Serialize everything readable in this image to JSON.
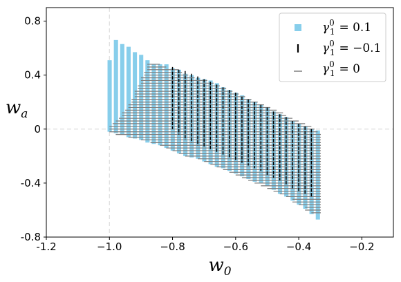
{
  "chart_data": {
    "type": "scatter",
    "title": "",
    "xlabel": "w",
    "xlabel_sub": "0",
    "ylabel": "w",
    "ylabel_sub": "a",
    "xlim": [
      -1.2,
      -0.1
    ],
    "ylim": [
      -0.8,
      0.9
    ],
    "x_ticks": [
      -1.2,
      -1.0,
      -0.8,
      -0.6,
      -0.4,
      -0.2
    ],
    "x_tick_labels": [
      "-1.2",
      "−1.0",
      "−0.8",
      "−0.6",
      "−0.4",
      "−0.2"
    ],
    "y_ticks": [
      -0.8,
      -0.4,
      0,
      0.4,
      0.8
    ],
    "y_tick_labels": [
      "-0.8",
      "-0.4",
      "0",
      "0.4",
      "0.8"
    ],
    "reference_lines": {
      "x": -1.0,
      "y": 0,
      "style": "dashed",
      "color": "#dddddd"
    },
    "legend_position": "top-right",
    "grid": false,
    "series": [
      {
        "name": "γ₁⁰ = 0.1",
        "name_math": {
          "base": "γ",
          "sup": "0",
          "sub": "1",
          "rhs": "= 0.1"
        },
        "marker": "square",
        "color": "#87ceeb",
        "column_width": 0.012,
        "columns": [
          {
            "x": -1.0,
            "ymin": -0.02,
            "ymax": 0.51
          },
          {
            "x": -0.98,
            "ymin": -0.03,
            "ymax": 0.66
          },
          {
            "x": -0.96,
            "ymin": -0.04,
            "ymax": 0.63
          },
          {
            "x": -0.94,
            "ymin": -0.06,
            "ymax": 0.61
          },
          {
            "x": -0.92,
            "ymin": -0.07,
            "ymax": 0.57
          },
          {
            "x": -0.9,
            "ymin": -0.08,
            "ymax": 0.55
          },
          {
            "x": -0.88,
            "ymin": -0.1,
            "ymax": 0.51
          },
          {
            "x": -0.86,
            "ymin": -0.11,
            "ymax": 0.48
          },
          {
            "x": -0.84,
            "ymin": -0.12,
            "ymax": 0.48
          },
          {
            "x": -0.82,
            "ymin": -0.14,
            "ymax": 0.48
          },
          {
            "x": -0.8,
            "ymin": -0.16,
            "ymax": 0.45
          },
          {
            "x": -0.78,
            "ymin": -0.18,
            "ymax": 0.44
          },
          {
            "x": -0.76,
            "ymin": -0.2,
            "ymax": 0.41
          },
          {
            "x": -0.74,
            "ymin": -0.21,
            "ymax": 0.4
          },
          {
            "x": -0.72,
            "ymin": -0.22,
            "ymax": 0.38
          },
          {
            "x": -0.7,
            "ymin": -0.24,
            "ymax": 0.37
          },
          {
            "x": -0.68,
            "ymin": -0.26,
            "ymax": 0.36
          },
          {
            "x": -0.66,
            "ymin": -0.28,
            "ymax": 0.34
          },
          {
            "x": -0.64,
            "ymin": -0.29,
            "ymax": 0.31
          },
          {
            "x": -0.62,
            "ymin": -0.31,
            "ymax": 0.29
          },
          {
            "x": -0.6,
            "ymin": -0.33,
            "ymax": 0.27
          },
          {
            "x": -0.58,
            "ymin": -0.35,
            "ymax": 0.25
          },
          {
            "x": -0.56,
            "ymin": -0.37,
            "ymax": 0.22
          },
          {
            "x": -0.54,
            "ymin": -0.39,
            "ymax": 0.2
          },
          {
            "x": -0.52,
            "ymin": -0.4,
            "ymax": 0.18
          },
          {
            "x": -0.5,
            "ymin": -0.42,
            "ymax": 0.16
          },
          {
            "x": -0.48,
            "ymin": -0.45,
            "ymax": 0.13
          },
          {
            "x": -0.46,
            "ymin": -0.48,
            "ymax": 0.11
          },
          {
            "x": -0.44,
            "ymin": -0.5,
            "ymax": 0.09
          },
          {
            "x": -0.42,
            "ymin": -0.53,
            "ymax": 0.06
          },
          {
            "x": -0.4,
            "ymin": -0.56,
            "ymax": 0.04
          },
          {
            "x": -0.38,
            "ymin": -0.59,
            "ymax": 0.02
          },
          {
            "x": -0.36,
            "ymin": -0.63,
            "ymax": 0.0
          },
          {
            "x": -0.34,
            "ymin": -0.67,
            "ymax": -0.01
          }
        ]
      },
      {
        "name": "γ₁⁰ = −0.1",
        "name_math": {
          "base": "γ",
          "sup": "0",
          "sub": "1",
          "rhs": "= −0.1"
        },
        "marker": "vline",
        "color": "#000000",
        "columns": [
          {
            "x": -0.8,
            "ymin": 0.0,
            "ymax": 0.46
          },
          {
            "x": -0.78,
            "ymin": -0.04,
            "ymax": 0.44
          },
          {
            "x": -0.76,
            "ymin": -0.08,
            "ymax": 0.43
          },
          {
            "x": -0.74,
            "ymin": -0.1,
            "ymax": 0.41
          },
          {
            "x": -0.72,
            "ymin": -0.12,
            "ymax": 0.39
          },
          {
            "x": -0.7,
            "ymin": -0.13,
            "ymax": 0.37
          },
          {
            "x": -0.68,
            "ymin": -0.15,
            "ymax": 0.35
          },
          {
            "x": -0.66,
            "ymin": -0.17,
            "ymax": 0.33
          },
          {
            "x": -0.64,
            "ymin": -0.19,
            "ymax": 0.31
          },
          {
            "x": -0.62,
            "ymin": -0.21,
            "ymax": 0.29
          },
          {
            "x": -0.6,
            "ymin": -0.23,
            "ymax": 0.27
          },
          {
            "x": -0.58,
            "ymin": -0.25,
            "ymax": 0.24
          },
          {
            "x": -0.56,
            "ymin": -0.27,
            "ymax": 0.22
          },
          {
            "x": -0.54,
            "ymin": -0.29,
            "ymax": 0.2
          },
          {
            "x": -0.52,
            "ymin": -0.31,
            "ymax": 0.18
          },
          {
            "x": -0.5,
            "ymin": -0.34,
            "ymax": 0.16
          },
          {
            "x": -0.48,
            "ymin": -0.36,
            "ymax": 0.13
          },
          {
            "x": -0.46,
            "ymin": -0.38,
            "ymax": 0.11
          },
          {
            "x": -0.44,
            "ymin": -0.41,
            "ymax": 0.09
          },
          {
            "x": -0.42,
            "ymin": -0.44,
            "ymax": 0.06
          },
          {
            "x": -0.4,
            "ymin": -0.46,
            "ymax": 0.04
          },
          {
            "x": -0.38,
            "ymin": -0.48,
            "ymax": 0.02
          },
          {
            "x": -0.36,
            "ymin": -0.5,
            "ymax": 0.0
          }
        ]
      },
      {
        "name": "γ₁⁰ = 0",
        "name_math": {
          "base": "γ",
          "sup": "0",
          "sub": "1",
          "rhs": "= 0"
        },
        "marker": "hline",
        "color": "#808080",
        "rows": [
          {
            "y": 0.48,
            "xmin": -0.88,
            "xmax": -0.84
          },
          {
            "y": 0.46,
            "xmin": -0.88,
            "xmax": -0.82
          },
          {
            "y": 0.44,
            "xmin": -0.88,
            "xmax": -0.78
          },
          {
            "y": 0.42,
            "xmin": -0.89,
            "xmax": -0.77
          },
          {
            "y": 0.4,
            "xmin": -0.89,
            "xmax": -0.75
          },
          {
            "y": 0.38,
            "xmin": -0.9,
            "xmax": -0.73
          },
          {
            "y": 0.36,
            "xmin": -0.9,
            "xmax": -0.69
          },
          {
            "y": 0.34,
            "xmin": -0.9,
            "xmax": -0.67
          },
          {
            "y": 0.32,
            "xmin": -0.91,
            "xmax": -0.65
          },
          {
            "y": 0.3,
            "xmin": -0.91,
            "xmax": -0.63
          },
          {
            "y": 0.28,
            "xmin": -0.92,
            "xmax": -0.61
          },
          {
            "y": 0.26,
            "xmin": -0.92,
            "xmax": -0.59
          },
          {
            "y": 0.24,
            "xmin": -0.92,
            "xmax": -0.57
          },
          {
            "y": 0.22,
            "xmin": -0.93,
            "xmax": -0.55
          },
          {
            "y": 0.2,
            "xmin": -0.93,
            "xmax": -0.53
          },
          {
            "y": 0.18,
            "xmin": -0.94,
            "xmax": -0.51
          },
          {
            "y": 0.16,
            "xmin": -0.94,
            "xmax": -0.49
          },
          {
            "y": 0.14,
            "xmin": -0.95,
            "xmax": -0.47
          },
          {
            "y": 0.12,
            "xmin": -0.96,
            "xmax": -0.45
          },
          {
            "y": 0.1,
            "xmin": -0.96,
            "xmax": -0.44
          },
          {
            "y": 0.08,
            "xmin": -0.97,
            "xmax": -0.42
          },
          {
            "y": 0.06,
            "xmin": -0.98,
            "xmax": -0.4
          },
          {
            "y": 0.04,
            "xmin": -0.99,
            "xmax": -0.38
          },
          {
            "y": 0.02,
            "xmin": -1.0,
            "xmax": -0.36
          },
          {
            "y": 0.0,
            "xmin": -1.0,
            "xmax": -0.35
          },
          {
            "y": -0.02,
            "xmin": -1.0,
            "xmax": -0.34
          },
          {
            "y": -0.04,
            "xmin": -0.98,
            "xmax": -0.33
          },
          {
            "y": -0.06,
            "xmin": -0.94,
            "xmax": -0.33
          },
          {
            "y": -0.08,
            "xmin": -0.9,
            "xmax": -0.33
          },
          {
            "y": -0.1,
            "xmin": -0.87,
            "xmax": -0.33
          },
          {
            "y": -0.12,
            "xmin": -0.84,
            "xmax": -0.33
          },
          {
            "y": -0.14,
            "xmin": -0.82,
            "xmax": -0.33
          },
          {
            "y": -0.16,
            "xmin": -0.8,
            "xmax": -0.33
          },
          {
            "y": -0.18,
            "xmin": -0.78,
            "xmax": -0.33
          },
          {
            "y": -0.2,
            "xmin": -0.76,
            "xmax": -0.33
          },
          {
            "y": -0.22,
            "xmin": -0.72,
            "xmax": -0.33
          },
          {
            "y": -0.24,
            "xmin": -0.7,
            "xmax": -0.33
          },
          {
            "y": -0.26,
            "xmin": -0.68,
            "xmax": -0.33
          },
          {
            "y": -0.28,
            "xmin": -0.66,
            "xmax": -0.33
          },
          {
            "y": -0.3,
            "xmin": -0.64,
            "xmax": -0.33
          },
          {
            "y": -0.32,
            "xmin": -0.62,
            "xmax": -0.33
          },
          {
            "y": -0.34,
            "xmin": -0.6,
            "xmax": -0.33
          },
          {
            "y": -0.36,
            "xmin": -0.58,
            "xmax": -0.33
          },
          {
            "y": -0.38,
            "xmin": -0.56,
            "xmax": -0.33
          },
          {
            "y": -0.4,
            "xmin": -0.54,
            "xmax": -0.33
          },
          {
            "y": -0.42,
            "xmin": -0.52,
            "xmax": -0.33
          },
          {
            "y": -0.44,
            "xmin": -0.5,
            "xmax": -0.33
          },
          {
            "y": -0.46,
            "xmin": -0.48,
            "xmax": -0.33
          },
          {
            "y": -0.48,
            "xmin": -0.46,
            "xmax": -0.33
          },
          {
            "y": -0.5,
            "xmin": -0.44,
            "xmax": -0.33
          },
          {
            "y": -0.52,
            "xmin": -0.42,
            "xmax": -0.33
          },
          {
            "y": -0.54,
            "xmin": -0.42,
            "xmax": -0.33
          },
          {
            "y": -0.56,
            "xmin": -0.4,
            "xmax": -0.33
          },
          {
            "y": -0.58,
            "xmin": -0.38,
            "xmax": -0.33
          },
          {
            "y": -0.6,
            "xmin": -0.38,
            "xmax": -0.33
          },
          {
            "y": -0.62,
            "xmin": -0.36,
            "xmax": -0.33
          }
        ]
      }
    ]
  }
}
